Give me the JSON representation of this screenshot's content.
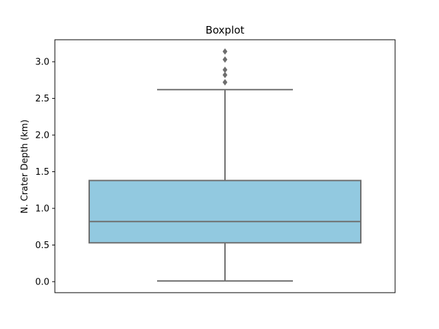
{
  "chart_data": {
    "type": "boxplot",
    "title": "Boxplot",
    "xlabel": "",
    "ylabel": "N. Crater Depth (km)",
    "ylim": [
      -0.15,
      3.3
    ],
    "yticks": [
      0.0,
      0.5,
      1.0,
      1.5,
      2.0,
      2.5,
      3.0
    ],
    "ytick_labels": [
      "0.0",
      "0.5",
      "1.0",
      "1.5",
      "2.0",
      "2.5",
      "3.0"
    ],
    "grid": false,
    "box": {
      "whisker_low": 0.01,
      "q1": 0.53,
      "median": 0.82,
      "q3": 1.38,
      "whisker_high": 2.62,
      "outliers": [
        2.72,
        2.82,
        2.89,
        3.03,
        3.14
      ]
    },
    "colors": {
      "box_fill": "#92c9e0",
      "line": "#6e6e6e",
      "axes": "#000000"
    }
  }
}
